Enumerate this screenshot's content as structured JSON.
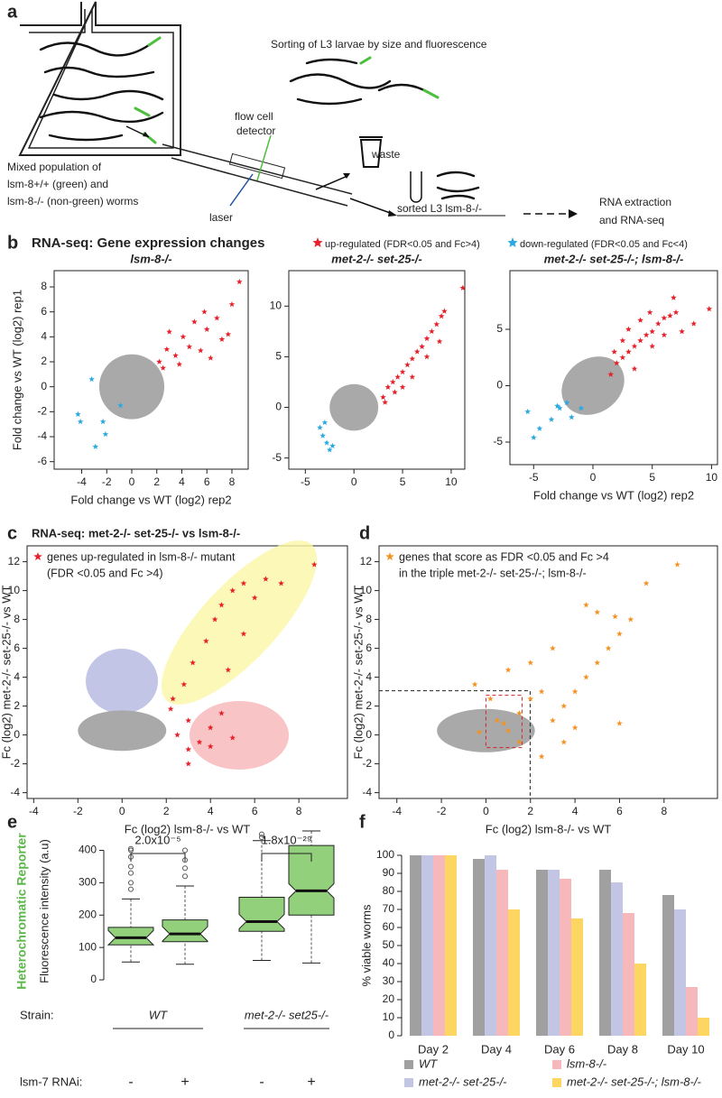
{
  "panel_labels": [
    "a",
    "b",
    "c",
    "d",
    "e",
    "f"
  ],
  "panel_a": {
    "title": "Sorting of L3 larvae by size and fluorescence",
    "flow_cell": [
      "flow cell",
      "detector"
    ],
    "mixed": [
      "Mixed population of",
      "lsm-8+/+ (green) and",
      "lsm-8-/- (non-green) worms"
    ],
    "laser": "laser",
    "waste": "waste",
    "sorted": "sorted L3  lsm-8-/-",
    "rna": [
      "RNA extraction",
      "and RNA-seq"
    ]
  },
  "panel_b": {
    "header": "RNA-seq: Gene expression changes",
    "legend_up": "up-regulated (FDR<0.05 and Fc>4)",
    "legend_down": "down-regulated (FDR<0.05 and Fc<4)"
  },
  "chart_data": [
    {
      "type": "scatter",
      "title": "lsm-8-/-",
      "ylabel": "Fold change  vs WT (log2) rep1",
      "xlabel": "Fold change vs WT (log2) rep2",
      "xlim": [
        -6.2,
        9.3
      ],
      "ylim": [
        -6.6,
        9.3
      ],
      "xticks": [
        -4,
        -2,
        0,
        2,
        4,
        6,
        8
      ],
      "yticks": [
        -6,
        -4,
        -2,
        0,
        2,
        4,
        6,
        8
      ],
      "series": [
        {
          "color": "#e8202a",
          "x": [
            2.2,
            2.8,
            3.5,
            4.1,
            4.6,
            5.0,
            5.5,
            6.0,
            6.3,
            6.8,
            7.2,
            7.7,
            3.0,
            3.8,
            8.6,
            8.0,
            5.8,
            2.5
          ],
          "values": [
            2.0,
            3.0,
            2.5,
            4.0,
            3.2,
            5.2,
            2.9,
            4.6,
            2.3,
            5.5,
            3.8,
            4.2,
            4.4,
            1.8,
            8.4,
            6.6,
            6.0,
            1.5
          ]
        },
        {
          "color": "#29a9e0",
          "x": [
            -4.3,
            -4.1,
            -3.2,
            -2.3,
            -2.1,
            -2.9,
            -0.9
          ],
          "values": [
            -2.2,
            -2.8,
            0.6,
            -2.8,
            -3.8,
            -4.8,
            -1.5
          ]
        }
      ]
    },
    {
      "type": "scatter",
      "title": "met-2-/- set-25-/-",
      "xlim": [
        -6.7,
        11.4
      ],
      "ylim": [
        -6.1,
        13.5
      ],
      "xticks": [
        -5,
        0,
        5,
        10
      ],
      "yticks": [
        -5,
        0,
        5,
        10
      ],
      "series": [
        {
          "color": "#e8202a",
          "x": [
            3,
            3.5,
            4,
            4.5,
            5,
            5.5,
            6,
            6.5,
            7,
            7.5,
            8,
            8.5,
            9,
            9.3,
            11.2,
            3.2,
            4.2,
            6,
            7.5,
            8.8,
            5
          ],
          "values": [
            1,
            2,
            2.5,
            3,
            3.5,
            4.2,
            4.8,
            5.5,
            6,
            6.8,
            7.5,
            8.2,
            9,
            9.5,
            11.8,
            0.5,
            1.5,
            3,
            5,
            6.5,
            2
          ]
        },
        {
          "color": "#29a9e0",
          "x": [
            -3.5,
            -3.2,
            -2.8,
            -2.2,
            -3,
            -2.5
          ],
          "values": [
            -2,
            -2.8,
            -3.5,
            -3.8,
            -1.5,
            -4.2
          ]
        }
      ]
    },
    {
      "type": "scatter",
      "title": "met-2-/- set-25-/-; lsm-8-/-",
      "xlabel": "Fold change vs WT (log2) rep2",
      "xlim": [
        -7,
        10.5
      ],
      "ylim": [
        -7,
        10.2
      ],
      "xticks": [
        -5,
        0,
        5,
        10
      ],
      "yticks": [
        -5,
        0,
        5
      ],
      "series": [
        {
          "color": "#e8202a",
          "x": [
            1.5,
            2,
            2.5,
            3,
            3.5,
            4,
            4.5,
            5,
            5.5,
            6,
            6.5,
            7,
            2.5,
            3,
            4,
            5,
            6,
            7.5,
            8.5,
            9.8,
            3.5,
            1.8,
            6.8,
            4.8
          ],
          "values": [
            1,
            2,
            2.5,
            3,
            3.5,
            4,
            4.5,
            4.8,
            5.5,
            6,
            6.2,
            6.5,
            4,
            5,
            5.8,
            3.5,
            4.5,
            4.8,
            5.5,
            6.8,
            1.5,
            3,
            7.8,
            6.5
          ]
        },
        {
          "color": "#29a9e0",
          "x": [
            -5,
            -4.5,
            -3.5,
            -2.8,
            -2.2,
            -1.8,
            -3,
            -5.5,
            -1
          ],
          "values": [
            -4.6,
            -3.8,
            -3,
            -2,
            -1.5,
            -2.8,
            -1.8,
            -2.3,
            -2
          ]
        }
      ]
    },
    {
      "type": "scatter",
      "title": "RNA-seq: met-2-/- set-25-/- vs lsm-8-/-",
      "ylabel": "Fc (log2) met-2-/- set-25-/- vs WT",
      "xlabel": "Fc (log2) lsm-8-/- vs WT",
      "annotations": [
        "genes up-regulated in lsm-8-/- mutant",
        "(FDR <0.05 and Fc >4)"
      ],
      "xlim": [
        -4.3,
        10.2
      ],
      "ylim": [
        -4.4,
        13.1
      ],
      "xticks": [
        -4,
        -2,
        0,
        2,
        4,
        6,
        8
      ],
      "yticks": [
        -4,
        -2,
        0,
        2,
        4,
        6,
        8,
        10,
        12
      ],
      "series": [
        {
          "color": "#e8202a",
          "x": [
            2.5,
            3,
            3.5,
            4,
            4.5,
            5,
            2.2,
            3,
            2.8,
            3.2,
            3.8,
            4.2,
            4.5,
            5,
            5.5,
            6,
            6.5,
            7.2,
            4.8,
            5.5,
            3,
            4,
            2.3,
            8.7
          ],
          "values": [
            0,
            1,
            -0.5,
            0.5,
            1.5,
            -0.2,
            1.8,
            -1,
            3.5,
            5,
            6.5,
            8,
            9,
            10,
            10.5,
            9.5,
            10.8,
            10.5,
            4.5,
            7,
            -2,
            -0.8,
            2.5,
            11.8
          ]
        }
      ]
    },
    {
      "type": "scatter",
      "ylabel": "Fc (log2) met-2-/- set-25-/- vs WT",
      "xlabel": "Fc (log2) lsm-8-/- vs WT",
      "annotations": [
        "genes that score as FDR <0.05 and Fc >4",
        "in the triple met-2-/- set-25-/-; lsm-8-/-"
      ],
      "xlim": [
        -4.8,
        10.4
      ],
      "ylim": [
        -4.4,
        13.1
      ],
      "xticks": [
        -4,
        -2,
        0,
        2,
        4,
        6,
        8
      ],
      "yticks": [
        -4,
        -2,
        0,
        2,
        4,
        6,
        8,
        10,
        12
      ],
      "series": [
        {
          "color": "#f39322",
          "x": [
            0.5,
            1,
            1.5,
            2,
            2.5,
            3,
            3.5,
            4,
            4.5,
            5,
            5.5,
            6,
            4.5,
            5,
            5.8,
            6.5,
            7.2,
            8.6,
            2,
            3,
            2.5,
            0.2,
            -0.5,
            1.5,
            3.5,
            1,
            4,
            6,
            -0.3,
            0.8
          ],
          "values": [
            1,
            0.3,
            1.5,
            2.5,
            3,
            1,
            2,
            3,
            4,
            5,
            6,
            7,
            9,
            8.5,
            8.2,
            8,
            10.5,
            11.8,
            5,
            6,
            -1.5,
            2.5,
            3.5,
            -0.5,
            -0.5,
            4.5,
            0.5,
            0.8,
            0.2,
            0.8
          ]
        }
      ]
    },
    {
      "type": "box",
      "reporter_label": "Heterochromatic Reporter",
      "ylabel": "Fluorescence intensity (a.u)",
      "ylim": [
        -25,
        460
      ],
      "yticks": [
        0,
        100,
        200,
        300,
        400
      ],
      "color": "#92d07c",
      "categories": [
        "-",
        "+",
        "-",
        "+"
      ],
      "boxes": [
        {
          "whislo": 55,
          "q1": 108,
          "med": 130,
          "q3": 162,
          "whishi": 250,
          "fliers": [
            280,
            300,
            330,
            350,
            380,
            400,
            405
          ]
        },
        {
          "whislo": 48,
          "q1": 118,
          "med": 142,
          "q3": 185,
          "whishi": 290,
          "fliers": [
            320,
            345,
            370,
            400
          ]
        },
        {
          "whislo": 60,
          "q1": 150,
          "med": 180,
          "q3": 255,
          "whishi": 430,
          "fliers": [
            440,
            450
          ]
        },
        {
          "whislo": 52,
          "q1": 200,
          "med": 275,
          "q3": 415,
          "whishi": 460,
          "fliers": []
        }
      ],
      "pvalues": [
        "2.0x10⁻⁵",
        "1.8x10⁻²⁹"
      ],
      "strain_label": "Strain:",
      "strains": [
        "WT",
        "met-2-/- set25-/-"
      ],
      "rnai_label": "lsm-7 RNAi:"
    },
    {
      "type": "bar",
      "ylabel": "% viable worms",
      "ylim": [
        0,
        100
      ],
      "yticks": [
        0,
        10,
        20,
        30,
        40,
        50,
        60,
        70,
        80,
        90,
        100
      ],
      "categories": [
        "Day 2",
        "Day 4",
        "Day 6",
        "Day 8",
        "Day 10"
      ],
      "series": [
        {
          "name": "WT",
          "color": "#a0a0a0",
          "values": [
            100,
            98,
            92,
            92,
            78
          ]
        },
        {
          "name": "lsm-8-/-",
          "color": "#f7b8bc",
          "values": [
            100,
            92,
            87,
            68,
            27
          ]
        },
        {
          "name": "met-2-/- set-25-/-",
          "color": "#c2c6e4",
          "values": [
            100,
            100,
            92,
            85,
            70
          ]
        },
        {
          "name": "met-2-/- set-25-/-; lsm-8-/-",
          "color": "#fcd660",
          "values": [
            100,
            70,
            65,
            40,
            10
          ]
        }
      ]
    }
  ]
}
